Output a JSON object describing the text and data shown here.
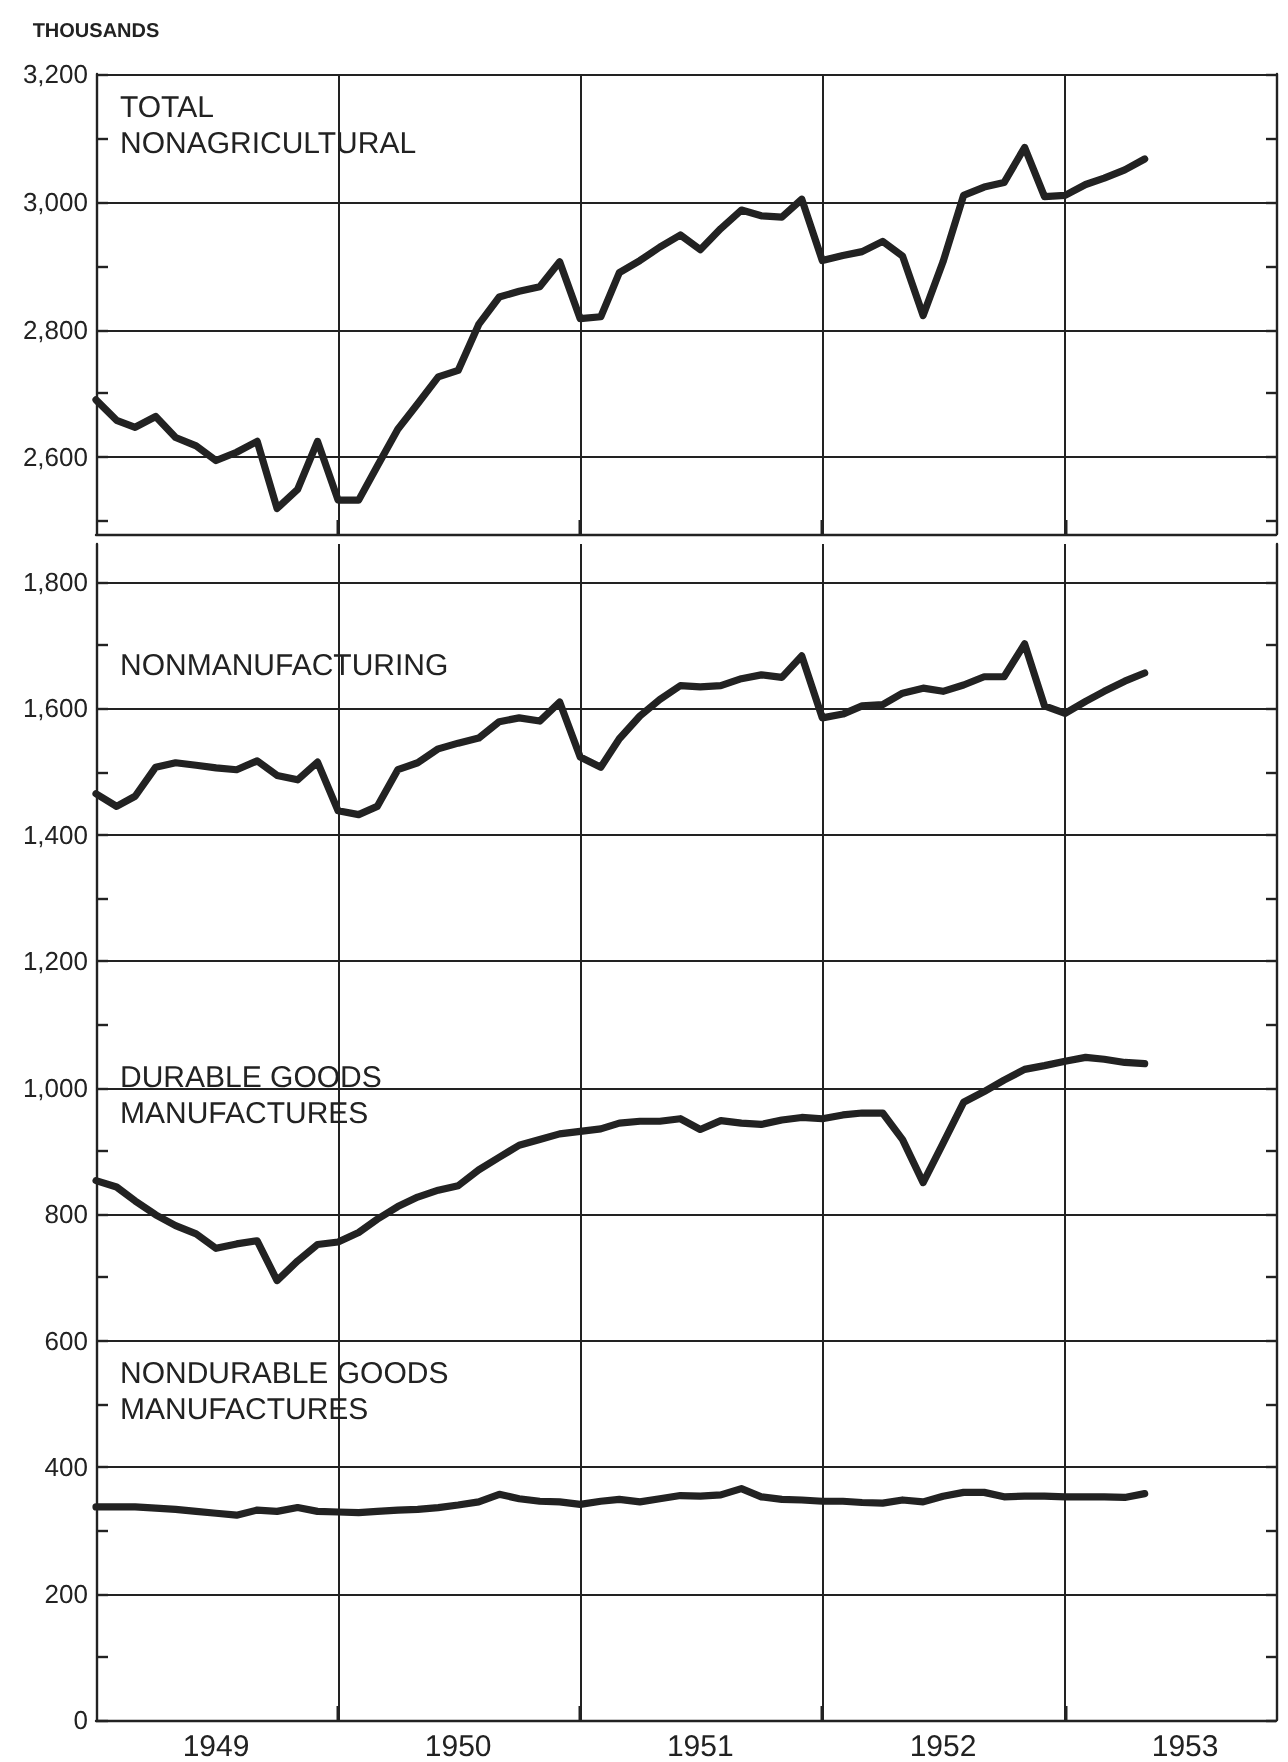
{
  "chart_data": [
    {
      "type": "line",
      "ylabel": "THOUSANDS",
      "tick_labels": "y",
      "grid": true,
      "marker": "none",
      "line_style": "solid",
      "x": [
        "1949-01",
        "1949-02",
        "1949-03",
        "1949-04",
        "1949-05",
        "1949-06",
        "1949-07",
        "1949-08",
        "1949-09",
        "1949-10",
        "1949-11",
        "1949-12",
        "1950-01",
        "1950-02",
        "1950-03",
        "1950-04",
        "1950-05",
        "1950-06",
        "1950-07",
        "1950-08",
        "1950-09",
        "1950-10",
        "1950-11",
        "1950-12",
        "1951-01",
        "1951-02",
        "1951-03",
        "1951-04",
        "1951-05",
        "1951-06",
        "1951-07",
        "1951-08",
        "1951-09",
        "1951-10",
        "1951-11",
        "1951-12",
        "1952-01",
        "1952-02",
        "1952-03",
        "1952-04",
        "1952-05",
        "1952-06",
        "1952-07",
        "1952-08",
        "1952-09",
        "1952-10",
        "1952-11",
        "1952-12",
        "1953-01",
        "1953-02",
        "1953-03",
        "1953-04",
        "1953-05"
      ],
      "xlim": [
        "1949-01",
        "1953-11-15"
      ],
      "xticks": [
        {
          "value": "1950-01",
          "label": null
        },
        {
          "value": "1951-01",
          "label": null
        },
        {
          "value": "1952-01",
          "label": null
        },
        {
          "value": "1953-01",
          "label": null
        }
      ],
      "ylim": [
        2480,
        3200
      ],
      "yticks": [
        {
          "value": 2500,
          "label": null
        },
        {
          "value": 2600,
          "label": "2,600"
        },
        {
          "value": 2700,
          "label": null
        },
        {
          "value": 2800,
          "label": "2,800"
        },
        {
          "value": 2900,
          "label": null
        },
        {
          "value": 3000,
          "label": "3,000"
        },
        {
          "value": 3100,
          "label": null
        },
        {
          "value": 3200,
          "label": "3,200"
        }
      ],
      "series": [
        {
          "name": "TOTAL NONAGRICULTURAL",
          "color": "#222222",
          "values": [
            2690,
            2658,
            2647,
            2664,
            2631,
            2618,
            2595,
            2608,
            2625,
            2520,
            2550,
            2625,
            2533,
            2533,
            2586,
            2644,
            2684,
            2726,
            2736,
            2808,
            2851,
            2860,
            2867,
            2906,
            2817,
            2820,
            2889,
            2908,
            2929,
            2948,
            2925,
            2958,
            2987,
            2978,
            2976,
            3004,
            2908,
            2916,
            2922,
            2938,
            2915,
            2822,
            2906,
            3010,
            3023,
            3030,
            3085,
            3008,
            3010,
            3027,
            3037,
            3050,
            3067
          ]
        }
      ]
    },
    {
      "type": "line",
      "grid": true,
      "marker": "none",
      "line_style": "solid",
      "x": [
        "1949-01",
        "1949-02",
        "1949-03",
        "1949-04",
        "1949-05",
        "1949-06",
        "1949-07",
        "1949-08",
        "1949-09",
        "1949-10",
        "1949-11",
        "1949-12",
        "1950-01",
        "1950-02",
        "1950-03",
        "1950-04",
        "1950-05",
        "1950-06",
        "1950-07",
        "1950-08",
        "1950-09",
        "1950-10",
        "1950-11",
        "1950-12",
        "1951-01",
        "1951-02",
        "1951-03",
        "1951-04",
        "1951-05",
        "1951-06",
        "1951-07",
        "1951-08",
        "1951-09",
        "1951-10",
        "1951-11",
        "1951-12",
        "1952-01",
        "1952-02",
        "1952-03",
        "1952-04",
        "1952-05",
        "1952-06",
        "1952-07",
        "1952-08",
        "1952-09",
        "1952-10",
        "1952-11",
        "1952-12",
        "1953-01",
        "1953-02",
        "1953-03",
        "1953-04",
        "1953-05"
      ],
      "xlim": [
        "1949-01",
        "1953-11-15"
      ],
      "xticks": [
        {
          "value": "1949-07",
          "label": "1949"
        },
        {
          "value": "1950-01",
          "label": null
        },
        {
          "value": "1950-07",
          "label": "1950"
        },
        {
          "value": "1951-01",
          "label": null
        },
        {
          "value": "1951-07",
          "label": "1951"
        },
        {
          "value": "1952-01",
          "label": null
        },
        {
          "value": "1952-07",
          "label": "1952"
        },
        {
          "value": "1953-01",
          "label": null
        },
        {
          "value": "1953-07",
          "label": "1953"
        }
      ],
      "ylim": [
        0,
        1860
      ],
      "yticks": [
        0,
        {
          "value": 100,
          "label": null
        },
        200,
        {
          "value": 300,
          "label": null
        },
        400,
        {
          "value": 500,
          "label": null
        },
        600,
        {
          "value": 700,
          "label": null
        },
        800,
        {
          "value": 900,
          "label": null
        },
        {
          "value": 1000,
          "label": "1,000"
        },
        {
          "value": 1100,
          "label": null
        },
        {
          "value": 1200,
          "label": "1,200"
        },
        {
          "value": 1300,
          "label": null
        },
        {
          "value": 1400,
          "label": "1,400"
        },
        {
          "value": 1500,
          "label": null
        },
        {
          "value": 1600,
          "label": "1,600"
        },
        {
          "value": 1700,
          "label": null
        },
        {
          "value": 1800,
          "label": "1,800"
        }
      ],
      "series": [
        {
          "name": "NONMANUFACTURING",
          "color": "#222222",
          "values": [
            1465,
            1445,
            1461,
            1507,
            1514,
            1510,
            1506,
            1503,
            1517,
            1494,
            1487,
            1515,
            1438,
            1432,
            1445,
            1503,
            1514,
            1536,
            1545,
            1553,
            1579,
            1585,
            1580,
            1610,
            1523,
            1507,
            1552,
            1588,
            1614,
            1636,
            1634,
            1636,
            1647,
            1653,
            1649,
            1683,
            1585,
            1591,
            1604,
            1606,
            1624,
            1632,
            1627,
            1637,
            1650,
            1650,
            1702,
            1604,
            1592,
            1611,
            1627,
            1643,
            1656
          ]
        },
        {
          "name": "DURABLE GOODS MANUFACTURES",
          "color": "#222222",
          "values": [
            853,
            843,
            821,
            799,
            782,
            769,
            746,
            753,
            758,
            695,
            726,
            752,
            756,
            771,
            792,
            812,
            827,
            838,
            845,
            870,
            890,
            909,
            918,
            927,
            931,
            935,
            944,
            947,
            947,
            951,
            934,
            948,
            944,
            942,
            949,
            953,
            951,
            957,
            960,
            960,
            918,
            850,
            912,
            977,
            994,
            1012,
            1029,
            1035,
            1042,
            1048,
            1045,
            1040,
            1038
          ]
        },
        {
          "name": "NONDURABLE GOODS MANUFACTURES",
          "color": "#222222",
          "values": [
            337,
            337,
            337,
            335,
            333,
            330,
            327,
            324,
            332,
            330,
            336,
            330,
            329,
            328,
            330,
            332,
            333,
            336,
            340,
            345,
            357,
            350,
            346,
            345,
            341,
            346,
            349,
            345,
            350,
            355,
            354,
            356,
            366,
            353,
            349,
            348,
            346,
            346,
            344,
            343,
            348,
            345,
            354,
            360,
            360,
            353,
            354,
            354,
            353,
            353,
            353,
            352,
            358
          ]
        }
      ]
    }
  ]
}
